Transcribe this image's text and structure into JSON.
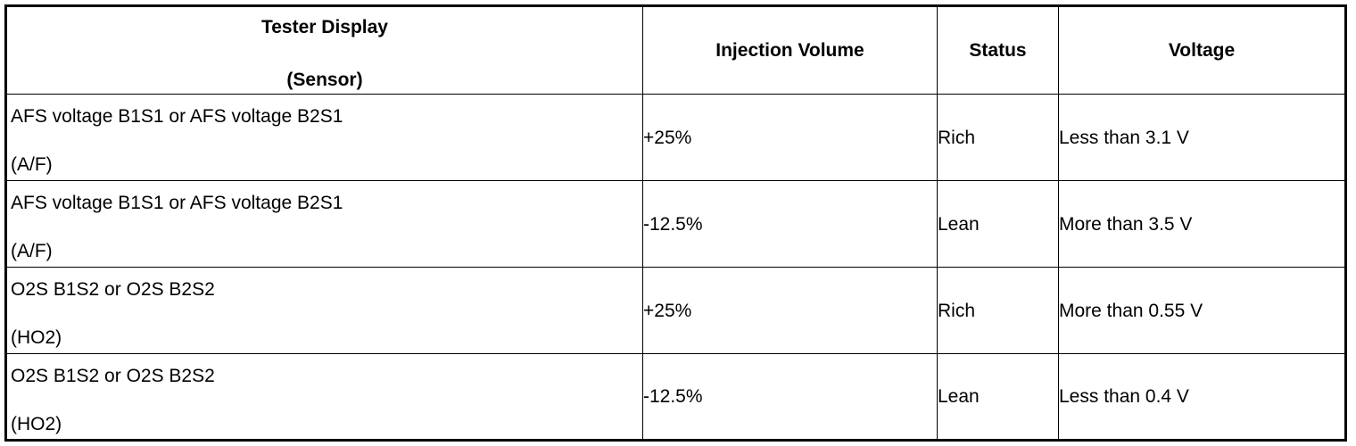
{
  "table": {
    "headers": {
      "tester_display": "Tester Display",
      "sensor": "(Sensor)",
      "injection_volume": "Injection Volume",
      "status": "Status",
      "voltage": "Voltage"
    },
    "rows": [
      {
        "sensor_name": "AFS voltage B1S1 or AFS voltage B2S1",
        "sensor_type": "(A/F)",
        "injection_volume": "+25%",
        "status": "Rich",
        "voltage": "Less than 3.1 V"
      },
      {
        "sensor_name": "AFS voltage B1S1 or AFS voltage B2S1",
        "sensor_type": "(A/F)",
        "injection_volume": "-12.5%",
        "status": "Lean",
        "voltage": "More than 3.5 V"
      },
      {
        "sensor_name": "O2S B1S2 or O2S B2S2",
        "sensor_type": "(HO2)",
        "injection_volume": "+25%",
        "status": "Rich",
        "voltage": "More than 0.55 V"
      },
      {
        "sensor_name": "O2S B1S2 or O2S B2S2",
        "sensor_type": "(HO2)",
        "injection_volume": "-12.5%",
        "status": "Lean",
        "voltage": "Less than 0.4 V"
      }
    ]
  }
}
